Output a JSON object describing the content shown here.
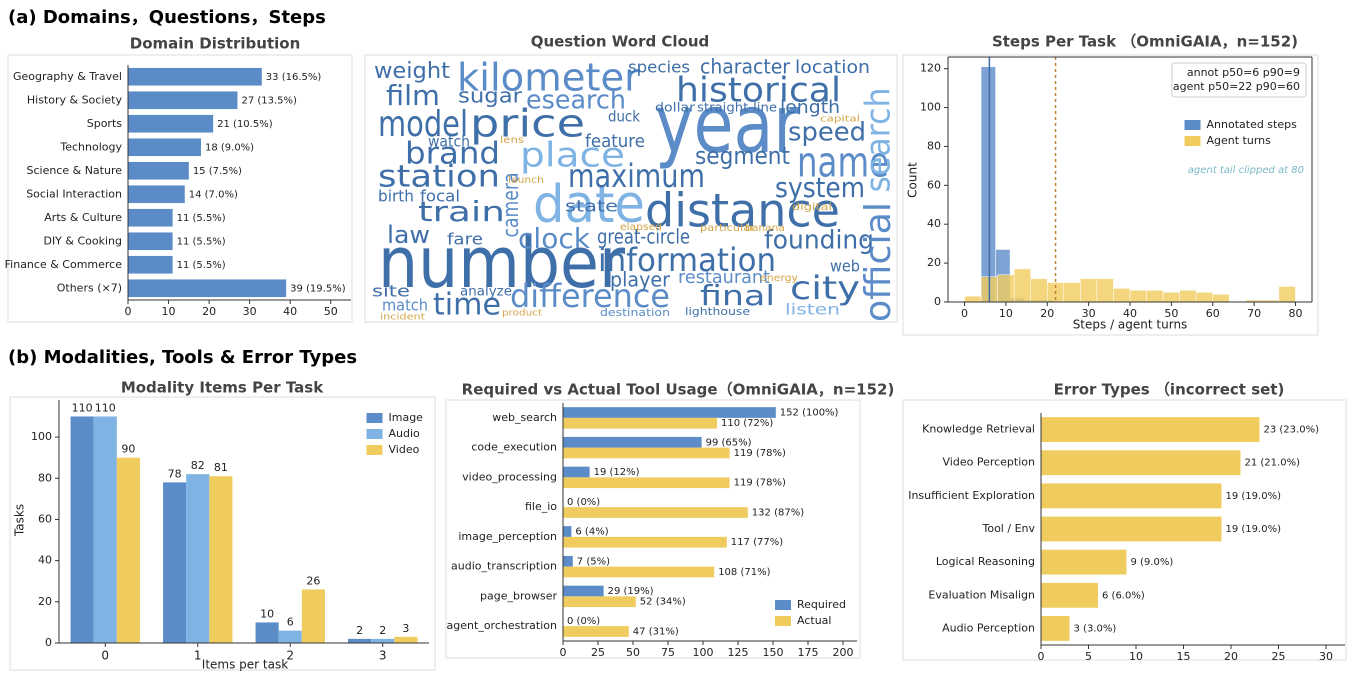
{
  "sections": [
    "(a)  Domains，Questions，Steps",
    "(b) Modalities, Tools & Error Types"
  ],
  "chart_data": [
    {
      "type": "bar",
      "orientation": "horizontal",
      "title": "Domain Distribution",
      "categories": [
        "Geography & Travel",
        "History & Society",
        "Sports",
        "Technology",
        "Science & Nature",
        "Social Interaction",
        "Arts & Culture",
        "DIY & Cooking",
        "Finance & Commerce",
        "Others (×7)"
      ],
      "values": [
        33,
        27,
        21,
        18,
        15,
        14,
        11,
        11,
        11,
        39
      ],
      "value_labels": [
        "33 (16.5%)",
        "27 (13.5%)",
        "21 (10.5%)",
        "18 (9.0%)",
        "15 (7.5%)",
        "14 (7.0%)",
        "11 (5.5%)",
        "11 (5.5%)",
        "11 (5.5%)",
        "39 (19.5%)"
      ],
      "color": "#5b8cc8",
      "xlim": [
        0,
        55
      ],
      "xticks": [
        0,
        10,
        20,
        30,
        40,
        50
      ]
    },
    {
      "type": "wordcloud",
      "title": "Question Word Cloud",
      "colors": [
        "#3f6fa8",
        "#5b8cc8",
        "#7fb3e3",
        "#d4a548"
      ],
      "words": [
        "year",
        "number",
        "date",
        "distance",
        "name",
        "kilometer",
        "historical",
        "model",
        "price",
        "place",
        "brand",
        "film",
        "sugar",
        "esearch",
        "weight",
        "maximum",
        "station",
        "system",
        "train",
        "law",
        "clock",
        "information",
        "founding",
        "city",
        "final",
        "difference",
        "time",
        "speed",
        "segment",
        "official",
        "search",
        "character",
        "location",
        "species",
        "length",
        "feature",
        "duck",
        "camera",
        "great-circle",
        "restaurant",
        "player",
        "web",
        "site",
        "match",
        "analyze",
        "birth",
        "focal",
        "fare",
        "state",
        "listen",
        "destination",
        "lighthouse",
        "watch",
        "dollar",
        "straight-line",
        "particular",
        "energy",
        "digital",
        "banana",
        "elapsed",
        "product",
        "incident",
        "capital",
        "lens",
        "launch"
      ]
    },
    {
      "type": "histogram",
      "title": "Steps Per Task （OmniGAIA，n=152)",
      "xlabel": "Steps / agent turns",
      "ylabel": "Count",
      "series": [
        {
          "name": "Annotated steps",
          "color": "#5b8cc8",
          "bins": [
            4,
            7.5,
            11,
            14.5,
            18,
            21.5
          ],
          "values": [
            121,
            27,
            2,
            1,
            1
          ]
        },
        {
          "name": "Agent turns",
          "color": "#f0cc5e",
          "bins": [
            0,
            4,
            8,
            12,
            16,
            20,
            24,
            28,
            32,
            36,
            40,
            44,
            48,
            52,
            56,
            60,
            64,
            68,
            72,
            76,
            80
          ],
          "values": [
            3,
            13,
            14,
            17,
            12,
            10,
            10,
            12,
            12,
            7,
            6,
            6,
            5,
            6,
            5,
            4,
            0,
            1,
            1,
            8
          ]
        }
      ],
      "lines": [
        {
          "value": 6,
          "color": "#3f6fa8",
          "style": "solid"
        },
        {
          "value": 22,
          "color": "#c0803a",
          "style": "dashed"
        }
      ],
      "stats_box": [
        "annot  p50=6 p90=9",
        "agent  p50=22 p90=60"
      ],
      "annotation": "agent tail clipped at 80",
      "legend": "upper right",
      "xlim": [
        -4,
        84
      ],
      "xticks": [
        0,
        10,
        20,
        30,
        40,
        50,
        60,
        70,
        80
      ],
      "ylim": [
        0,
        126
      ],
      "yticks": [
        0,
        20,
        40,
        60,
        80,
        100,
        120
      ]
    },
    {
      "type": "bar",
      "orientation": "vertical",
      "title": "Modality Items Per Task",
      "xlabel": "Items per task",
      "ylabel": "Tasks",
      "categories": [
        "0",
        "1",
        "2",
        "3"
      ],
      "series": [
        {
          "name": "Image",
          "color": "#5b8cc8",
          "values": [
            110,
            78,
            10,
            2
          ]
        },
        {
          "name": "Audio",
          "color": "#7fb3e3",
          "values": [
            110,
            82,
            6,
            2
          ]
        },
        {
          "name": "Video",
          "color": "#f0cc5e",
          "values": [
            90,
            81,
            26,
            3
          ]
        }
      ],
      "legend": "upper right",
      "ylim": [
        0,
        118
      ],
      "yticks": [
        0,
        20,
        40,
        60,
        80,
        100
      ]
    },
    {
      "type": "bar",
      "orientation": "horizontal",
      "title": "Required vs Actual Tool Usage（OmniGAIA，n=152)",
      "categories": [
        "web_search",
        "code_execution",
        "video_processing",
        "file_io",
        "image_perception",
        "audio_transcription",
        "page_browser",
        "agent_orchestration"
      ],
      "series": [
        {
          "name": "Required",
          "color": "#5b8cc8",
          "values": [
            152,
            99,
            19,
            0,
            6,
            7,
            29,
            0
          ],
          "value_labels": [
            "152 (100%)",
            "99 (65%)",
            "19 (12%)",
            "0 (0%)",
            "6 (4%)",
            "7 (5%)",
            "29 (19%)",
            "0 (0%)"
          ]
        },
        {
          "name": "Actual",
          "color": "#f0cc5e",
          "values": [
            110,
            119,
            119,
            132,
            117,
            108,
            52,
            47
          ],
          "value_labels": [
            "110 (72%)",
            "119 (78%)",
            "119 (78%)",
            "132 (87%)",
            "117 (77%)",
            "108 (71%)",
            "52 (34%)",
            "47 (31%)"
          ]
        }
      ],
      "legend": "lower right",
      "xlim": [
        0,
        210
      ],
      "xticks": [
        0,
        25,
        50,
        75,
        100,
        125,
        150,
        175,
        200
      ]
    },
    {
      "type": "bar",
      "orientation": "horizontal",
      "title": "Error Types （incorrect set)",
      "categories": [
        "Knowledge Retrieval",
        "Video Perception",
        "Insufficient Exploration",
        "Tool / Env",
        "Logical Reasoning",
        "Evaluation Misalign",
        "Audio Perception"
      ],
      "values": [
        23,
        21,
        19,
        19,
        9,
        6,
        3
      ],
      "value_labels": [
        "23 (23.0%)",
        "21 (21.0%)",
        "19 (19.0%)",
        "19 (19.0%)",
        "9 (9.0%)",
        "6 (6.0%)",
        "3 (3.0%)"
      ],
      "color": "#f0cc5e",
      "xlim": [
        0,
        32
      ],
      "xticks": [
        0,
        5,
        10,
        15,
        20,
        25,
        30
      ]
    }
  ]
}
